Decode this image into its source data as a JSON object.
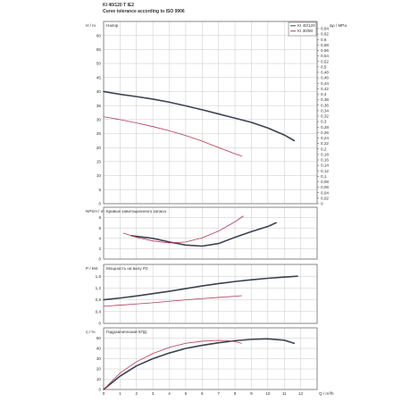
{
  "header": {
    "title": "KI 40/120 T IE2",
    "subtitle": "Curve tolerance according to ISO 9906"
  },
  "legend": [
    {
      "name": "KI 40/120",
      "color": "#3a4350"
    },
    {
      "name": "KI 30/90",
      "color": "#b23a56"
    }
  ],
  "colors": {
    "series_dark": "#3a4350",
    "series_red": "#b23a56",
    "grid": "#c8c8c8",
    "frame": "#555555"
  },
  "chart_data": [
    {
      "type": "line",
      "panel": "head",
      "title": "Напор",
      "ylabel": "H / m",
      "ylabel_right": "Δp / MPa",
      "xlim": [
        0,
        13
      ],
      "ylim": [
        0,
        65
      ],
      "y_ticks": [
        0,
        5,
        10,
        15,
        20,
        25,
        30,
        35,
        40,
        45,
        50,
        55,
        60
      ],
      "y_ticks_right": [
        "0",
        "0,02",
        "0,04",
        "0,06",
        "0,08",
        "0,1",
        "0,12",
        "0,14",
        "0,16",
        "0,18",
        "0,2",
        "0,22",
        "0,24",
        "0,26",
        "0,28",
        "0,3",
        "0,32",
        "0,34",
        "0,36",
        "0,38",
        "0,4",
        "0,42",
        "0,44",
        "0,46",
        "0,48",
        "0,5",
        "0,52",
        "0,54",
        "0,56",
        "0,58",
        "0,6",
        "0,62",
        "0,64"
      ],
      "legend_placement": "top-right",
      "series": [
        {
          "name": "KI 40/120",
          "x": [
            0,
            1,
            2,
            3,
            4,
            5,
            6,
            7,
            8,
            9,
            10,
            11,
            11.6
          ],
          "y": [
            40,
            39,
            38.2,
            37.3,
            36.2,
            34.9,
            33.5,
            32,
            30.5,
            29,
            27,
            24.5,
            22.5
          ]
        },
        {
          "name": "KI 30/90",
          "x": [
            0,
            1,
            2,
            3,
            4,
            5,
            6,
            7,
            8,
            8.4
          ],
          "y": [
            31,
            30,
            28.8,
            27.5,
            26,
            24.3,
            22.3,
            20,
            17.8,
            17
          ]
        }
      ]
    },
    {
      "type": "line",
      "panel": "npsh",
      "title": "Кривые кавитационного запаса",
      "ylabel": "NPSH / m",
      "xlim": [
        0,
        13
      ],
      "ylim": [
        0,
        10
      ],
      "y_ticks": [
        0,
        2,
        4,
        6,
        8
      ],
      "series": [
        {
          "name": "KI 40/120",
          "x": [
            1.7,
            3,
            4,
            5,
            6,
            7,
            8,
            9,
            10,
            10.5
          ],
          "y": [
            4.5,
            4,
            3.3,
            2.7,
            2.5,
            3,
            4.2,
            5.3,
            6.3,
            7
          ]
        },
        {
          "name": "KI 30/90",
          "x": [
            1.2,
            2,
            3,
            4,
            5,
            6,
            7,
            8,
            8.5
          ],
          "y": [
            5,
            4.2,
            3.5,
            3.1,
            3.3,
            4.1,
            5.4,
            7.2,
            8.3
          ]
        }
      ]
    },
    {
      "type": "line",
      "panel": "power",
      "title": "Мощность на валу P2",
      "ylabel": "P / kW",
      "xlim": [
        0,
        13
      ],
      "ylim": [
        0,
        2
      ],
      "y_ticks": [
        0,
        0.4,
        0.8,
        1.2,
        1.6
      ],
      "y_tick_labels": [
        "0",
        "0,4",
        "0,8",
        "1,2",
        "1,6"
      ],
      "series": [
        {
          "name": "KI 40/120",
          "x": [
            0,
            1,
            2,
            3,
            4,
            5,
            6,
            7,
            8,
            9,
            10,
            11,
            11.8
          ],
          "y": [
            0.8,
            0.86,
            0.93,
            1.01,
            1.09,
            1.18,
            1.27,
            1.35,
            1.42,
            1.48,
            1.53,
            1.57,
            1.6
          ]
        },
        {
          "name": "KI 30/90",
          "x": [
            0,
            1,
            2,
            3,
            4,
            5,
            6,
            7,
            8,
            8.4
          ],
          "y": [
            0.58,
            0.62,
            0.66,
            0.7,
            0.75,
            0.8,
            0.84,
            0.88,
            0.92,
            0.94
          ]
        }
      ]
    },
    {
      "type": "line",
      "panel": "efficiency",
      "title": "Гидравлический КПД",
      "ylabel": "η / %",
      "xlabel": "Q / m³/h",
      "xlim": [
        0,
        13
      ],
      "ylim": [
        0,
        60
      ],
      "y_ticks": [
        0,
        10,
        20,
        30,
        40,
        50
      ],
      "x_ticks": [
        0,
        1,
        2,
        3,
        4,
        5,
        6,
        7,
        8,
        9,
        10,
        11,
        12
      ],
      "series": [
        {
          "name": "KI 40/120",
          "x": [
            0,
            1,
            2,
            3,
            4,
            5,
            6,
            7,
            8,
            9,
            10,
            11,
            11.6
          ],
          "y": [
            0,
            13,
            23,
            30,
            35.5,
            40,
            43,
            45.5,
            47.5,
            48.8,
            49.3,
            48,
            45
          ]
        },
        {
          "name": "KI 30/90",
          "x": [
            0,
            1,
            2,
            3,
            4,
            5,
            6,
            7,
            7.5,
            8,
            8.4
          ],
          "y": [
            0,
            16,
            27,
            35,
            41,
            45,
            47,
            47.8,
            47.6,
            46.5,
            45
          ]
        }
      ]
    }
  ]
}
